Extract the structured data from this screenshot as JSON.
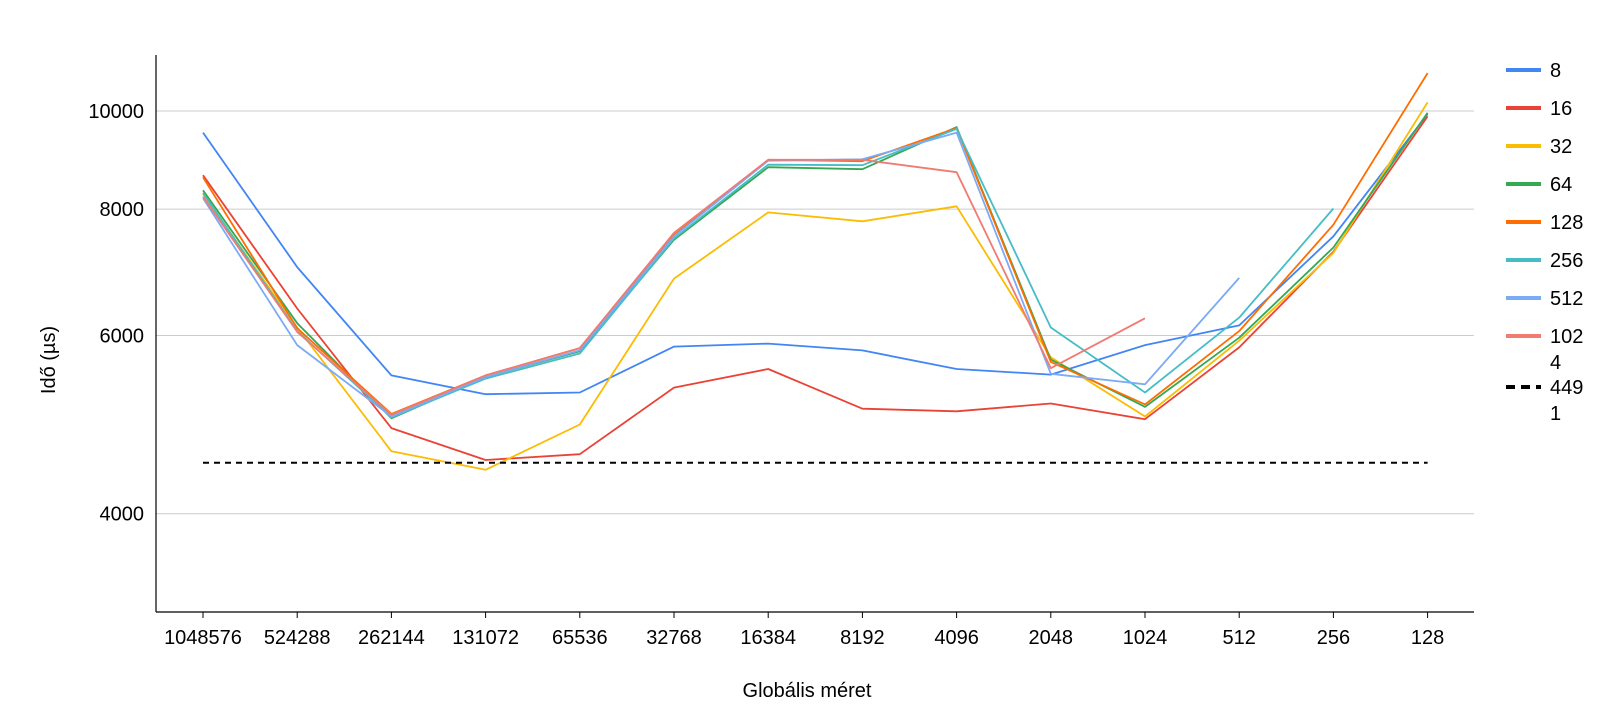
{
  "chart_data": {
    "type": "line",
    "title": "",
    "xlabel": "Globális méret",
    "ylabel": "Idő (µs)",
    "y_scale": "log",
    "ylim": [
      3500,
      11000
    ],
    "y_ticks": [
      4000,
      6000,
      8000,
      10000
    ],
    "y_tick_labels": [
      "4000",
      "6000",
      "8000",
      "10000"
    ],
    "grid": "horizontal",
    "legend_position": "right",
    "categories": [
      "1048576",
      "524288",
      "262144",
      "131072",
      "65536",
      "32768",
      "16384",
      "8192",
      "4096",
      "2048",
      "1024",
      "512",
      "256",
      "128"
    ],
    "series": [
      {
        "name": "8",
        "legend_label": [
          "8"
        ],
        "color": "#4285F4",
        "dashed": false,
        "values": [
          9520,
          7010,
          5480,
          5250,
          5270,
          5850,
          5890,
          5800,
          5560,
          5490,
          5870,
          6140,
          7520,
          9930
        ]
      },
      {
        "name": "16",
        "legend_label": [
          "16"
        ],
        "color": "#EA4335",
        "dashed": false,
        "values": [
          8640,
          6380,
          4860,
          4520,
          4580,
          5330,
          5560,
          5080,
          5050,
          5140,
          4960,
          5840,
          7260,
          9880
        ]
      },
      {
        "name": "32",
        "legend_label": [
          "32"
        ],
        "color": "#FBBC04",
        "dashed": false,
        "values": [
          8280,
          6110,
          4610,
          4420,
          4900,
          6830,
          7940,
          7780,
          8050,
          5710,
          4990,
          5930,
          7240,
          10200
        ]
      },
      {
        "name": "64",
        "legend_label": [
          "64"
        ],
        "color": "#34A853",
        "dashed": false,
        "values": [
          8350,
          6170,
          4970,
          5460,
          5790,
          7460,
          8800,
          8760,
          9640,
          5680,
          5100,
          5970,
          7330,
          9960
        ]
      },
      {
        "name": "128",
        "legend_label": [
          "128"
        ],
        "color": "#FF6D01",
        "dashed": false,
        "values": [
          8600,
          6100,
          5020,
          5480,
          5830,
          7540,
          8950,
          8920,
          9620,
          5650,
          5130,
          6060,
          7720,
          10900
        ]
      },
      {
        "name": "256",
        "legend_label": [
          "256"
        ],
        "color": "#46BDC6",
        "dashed": false,
        "values": [
          8300,
          6060,
          4980,
          5440,
          5760,
          7480,
          8850,
          8840,
          9600,
          6110,
          5270,
          6250,
          8010,
          null
        ]
      },
      {
        "name": "512",
        "legend_label": [
          "512"
        ],
        "color": "#7BAAF7",
        "dashed": false,
        "values": [
          8200,
          5870,
          4990,
          5460,
          5800,
          7520,
          8930,
          8960,
          9520,
          5500,
          5370,
          6840,
          null,
          null
        ]
      },
      {
        "name": "1024",
        "legend_label": [
          "102",
          "4"
        ],
        "color": "#F07B72",
        "dashed": false,
        "values": [
          8230,
          6050,
          5010,
          5480,
          5830,
          7580,
          8950,
          8950,
          8700,
          5570,
          6240,
          null,
          null,
          null
        ]
      },
      {
        "name": "4491",
        "legend_label": [
          "449",
          "1"
        ],
        "color": "#000000",
        "dashed": true,
        "values": [
          4491,
          4491,
          4491,
          4491,
          4491,
          4491,
          4491,
          4491,
          4491,
          4491,
          4491,
          4491,
          4491,
          4491
        ]
      }
    ]
  }
}
